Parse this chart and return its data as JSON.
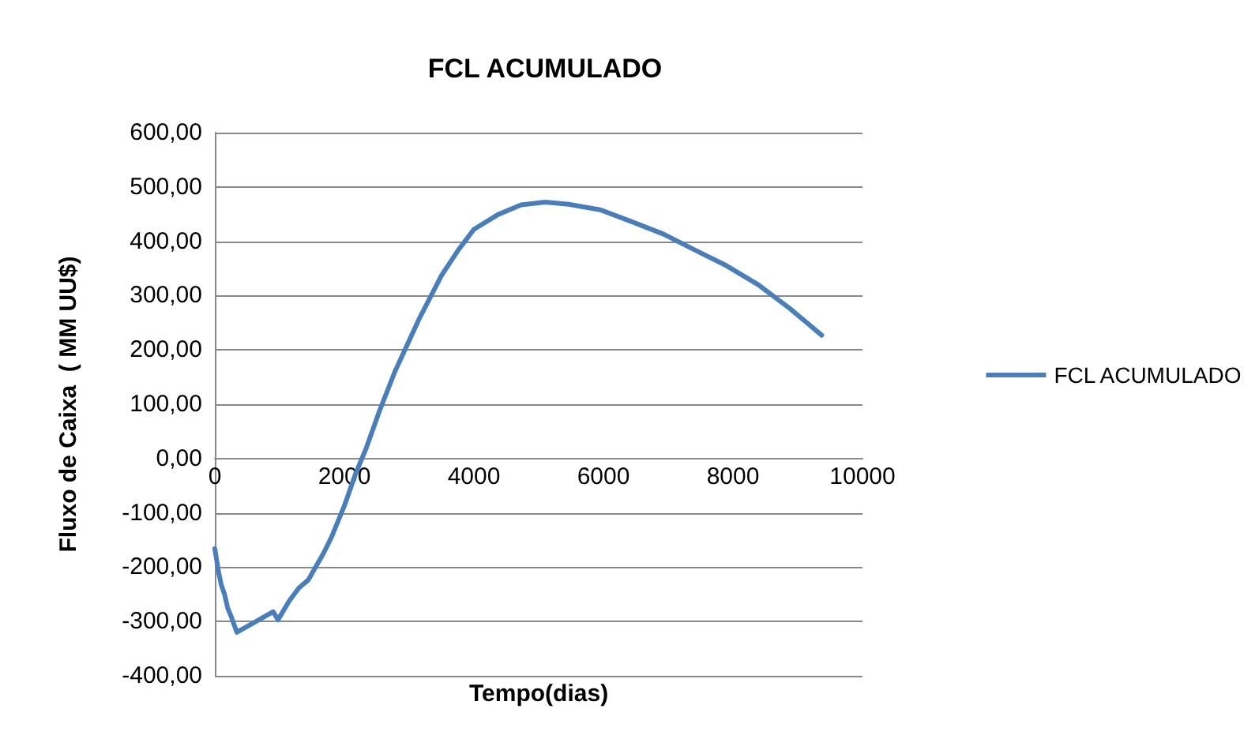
{
  "chart_data": {
    "type": "line",
    "title": "FCL ACUMULADO",
    "xlabel": "Tempo(dias)",
    "ylabel": "Fluxo de Caixa  ( MM UU$)",
    "series": [
      {
        "name": "FCL ACUMULADO",
        "color": "#4a7ebb",
        "x": [
          0,
          60,
          100,
          150,
          200,
          250,
          280,
          340,
          900,
          975,
          1150,
          1300,
          1440,
          1680,
          1800,
          2000,
          2170,
          2340,
          2540,
          2780,
          3150,
          3500,
          3760,
          4000,
          4370,
          4730,
          5100,
          5460,
          5950,
          6440,
          6930,
          7410,
          7900,
          8390,
          8880,
          9370
        ],
        "values": [
          -166,
          -210,
          -233,
          -250,
          -276,
          -290,
          -300,
          -320,
          -282,
          -297,
          -262,
          -238,
          -224,
          -174,
          -145,
          -87,
          -29,
          20,
          87,
          160,
          256,
          337,
          384,
          422,
          449,
          467,
          472,
          468,
          458,
          436,
          413,
          384,
          355,
          320,
          276,
          227
        ]
      }
    ],
    "xlim": [
      0,
      10000
    ],
    "xticks": [
      0,
      2000,
      4000,
      6000,
      8000,
      10000
    ],
    "ylim": [
      -400,
      600
    ],
    "yticks": [
      {
        "value": -400,
        "label": "-400,00"
      },
      {
        "value": -300,
        "label": "-300,00"
      },
      {
        "value": -200,
        "label": "-200,00"
      },
      {
        "value": -100,
        "label": "-100,00"
      },
      {
        "value": 0,
        "label": "0,00"
      },
      {
        "value": 100,
        "label": "100,00"
      },
      {
        "value": 200,
        "label": "200,00"
      },
      {
        "value": 300,
        "label": "300,00"
      },
      {
        "value": 400,
        "label": "400,00"
      },
      {
        "value": 500,
        "label": "500,00"
      },
      {
        "value": 600,
        "label": "600,00"
      }
    ],
    "grid": "y",
    "legend": "right",
    "marker": "none",
    "line_style": "solid"
  }
}
